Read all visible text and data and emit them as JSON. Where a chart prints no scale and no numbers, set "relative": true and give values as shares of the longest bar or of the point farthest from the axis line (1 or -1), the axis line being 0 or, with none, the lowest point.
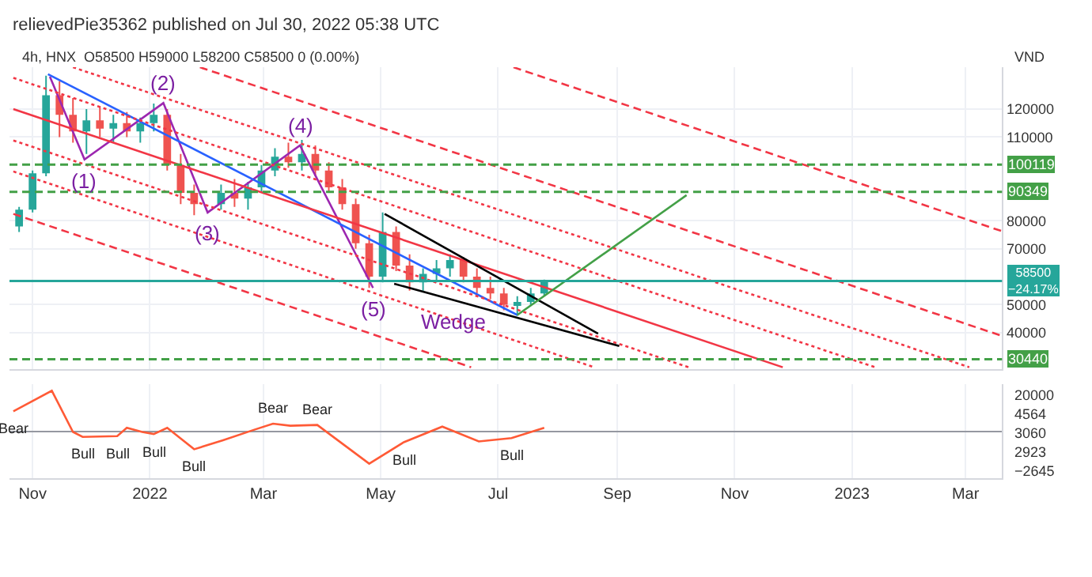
{
  "chart_data": [
    {
      "type": "candlestick",
      "title": "relievedPie35362 published on Jul 30, 2022 05:38 UTC",
      "subtitle": "4h, HNX  O58500 H59000 L58200 C58500 0 (0.00%)",
      "ylabel": "VND",
      "x": [
        "2021-10-25",
        "2021-11-01",
        "2021-11-08",
        "2021-11-15",
        "2021-11-22",
        "2021-11-29",
        "2021-12-06",
        "2021-12-13",
        "2021-12-20",
        "2021-12-27",
        "2022-01-03",
        "2022-01-10",
        "2022-01-17",
        "2022-01-24",
        "2022-02-07",
        "2022-02-14",
        "2022-02-21",
        "2022-02-28",
        "2022-03-07",
        "2022-03-14",
        "2022-03-21",
        "2022-03-28",
        "2022-04-04",
        "2022-04-11",
        "2022-04-18",
        "2022-04-25",
        "2022-05-02",
        "2022-05-09",
        "2022-05-16",
        "2022-05-23",
        "2022-05-30",
        "2022-06-06",
        "2022-06-13",
        "2022-06-20",
        "2022-06-27",
        "2022-07-04",
        "2022-07-11",
        "2022-07-18",
        "2022-07-25"
      ],
      "ohlc": [
        [
          78000,
          85000,
          76000,
          84000
        ],
        [
          84000,
          98000,
          83000,
          97000
        ],
        [
          97000,
          132000,
          96000,
          125000
        ],
        [
          125000,
          130000,
          110000,
          118000
        ],
        [
          118000,
          124000,
          108000,
          112000
        ],
        [
          112000,
          120000,
          104000,
          116000
        ],
        [
          116000,
          121000,
          110000,
          113000
        ],
        [
          113000,
          118000,
          108000,
          115000
        ],
        [
          115000,
          119000,
          110000,
          112000
        ],
        [
          112000,
          117000,
          108000,
          115000
        ],
        [
          115000,
          122000,
          112000,
          118000
        ],
        [
          118000,
          120000,
          98000,
          100000
        ],
        [
          100000,
          104000,
          86000,
          90000
        ],
        [
          90000,
          93000,
          82000,
          86000
        ],
        [
          86000,
          93000,
          84000,
          90000
        ],
        [
          90000,
          95000,
          85000,
          88000
        ],
        [
          88000,
          94000,
          84000,
          92000
        ],
        [
          92000,
          100000,
          90000,
          98000
        ],
        [
          98000,
          106000,
          96000,
          103000
        ],
        [
          103000,
          108000,
          99000,
          101000
        ],
        [
          101000,
          109000,
          98000,
          104000
        ],
        [
          104000,
          107000,
          96000,
          98000
        ],
        [
          98000,
          101000,
          90000,
          92000
        ],
        [
          92000,
          95000,
          84000,
          86000
        ],
        [
          86000,
          88000,
          70000,
          72000
        ],
        [
          72000,
          75000,
          56000,
          60000
        ],
        [
          60000,
          83000,
          58000,
          76000
        ],
        [
          76000,
          78000,
          62000,
          64000
        ],
        [
          64000,
          68000,
          55000,
          58000
        ],
        [
          58000,
          63000,
          55000,
          61000
        ],
        [
          61000,
          66000,
          58000,
          63000
        ],
        [
          63000,
          68000,
          60000,
          66000
        ],
        [
          66000,
          67000,
          58000,
          60000
        ],
        [
          60000,
          63000,
          54000,
          56000
        ],
        [
          56000,
          60000,
          52000,
          54000
        ],
        [
          54000,
          56000,
          48000,
          50000
        ],
        [
          50000,
          53000,
          46000,
          51000
        ],
        [
          51000,
          56000,
          50000,
          54000
        ],
        [
          54000,
          59000,
          53000,
          58500
        ]
      ],
      "colors": [
        "#26a69a",
        "#26a69a",
        "#26a69a",
        "#ef5350",
        "#ef5350",
        "#26a69a",
        "#ef5350",
        "#26a69a",
        "#ef5350",
        "#26a69a",
        "#26a69a",
        "#ef5350",
        "#ef5350",
        "#ef5350",
        "#26a69a",
        "#ef5350",
        "#26a69a",
        "#26a69a",
        "#26a69a",
        "#ef5350",
        "#26a69a",
        "#ef5350",
        "#ef5350",
        "#ef5350",
        "#ef5350",
        "#ef5350",
        "#26a69a",
        "#ef5350",
        "#ef5350",
        "#26a69a",
        "#26a69a",
        "#26a69a",
        "#ef5350",
        "#ef5350",
        "#ef5350",
        "#ef5350",
        "#26a69a",
        "#26a69a",
        "#26a69a"
      ],
      "series": [
        {
          "type": "line",
          "color": "#9c27b0",
          "x": [
            "2021-11-10",
            "2021-11-28",
            "2022-01-08",
            "2022-01-31",
            "2022-03-20",
            "2022-04-27"
          ],
          "values": [
            131600,
            102000,
            122200,
            83000,
            107000,
            56000
          ]
        },
        {
          "type": "line",
          "color": "#2962ff",
          "x": [
            "2021-11-09",
            "2022-07-11"
          ],
          "values": [
            132500,
            46300
          ]
        },
        {
          "type": "line",
          "color": "#f23645",
          "x": [
            "2021-10-22",
            "2022-11-26"
          ],
          "values": [
            120000,
            27600
          ]
        },
        {
          "type": "line",
          "color": "#f23645",
          "line_style": "dotted",
          "x": [
            "2021-10-22",
            "2023-01-13"
          ],
          "values": [
            131200,
            27600
          ]
        },
        {
          "type": "line",
          "color": "#f23645",
          "line_style": "dotted",
          "x": [
            "2021-11-22",
            "2023-03-03"
          ],
          "values": [
            135000,
            27600
          ]
        },
        {
          "type": "line",
          "color": "#f23645",
          "line_style": "dashed",
          "x": [
            "2022-01-27",
            "2023-03-20"
          ],
          "values": [
            135000,
            38800
          ]
        },
        {
          "type": "line",
          "color": "#f23645",
          "line_style": "dashed",
          "x": [
            "2022-07-09",
            "2023-03-20"
          ],
          "values": [
            135000,
            76300
          ]
        },
        {
          "type": "line",
          "color": "#f23645",
          "line_style": "dotted",
          "x": [
            "2021-10-22",
            "2022-10-08"
          ],
          "values": [
            108800,
            27600
          ]
        },
        {
          "type": "line",
          "color": "#f23645",
          "line_style": "dotted",
          "x": [
            "2021-10-22",
            "2022-08-20"
          ],
          "values": [
            97700,
            27600
          ]
        },
        {
          "type": "line",
          "color": "#f23645",
          "line_style": "dashed",
          "x": [
            "2021-10-22",
            "2022-06-17"
          ],
          "values": [
            82500,
            27600
          ]
        },
        {
          "type": "line",
          "color": "#000000",
          "x": [
            "2022-05-03",
            "2022-08-22"
          ],
          "values": [
            82500,
            39600
          ]
        },
        {
          "type": "line",
          "color": "#000000",
          "x": [
            "2022-05-08",
            "2022-06-08",
            "2022-09-02"
          ],
          "values": [
            57500,
            51600,
            35200
          ]
        },
        {
          "type": "line",
          "color": "#43a047",
          "x": [
            "2022-07-11",
            "2022-10-07"
          ],
          "values": [
            46300,
            89200
          ]
        }
      ],
      "ref_lines": [
        {
          "axis": "y",
          "value": 100119,
          "label": "100119",
          "color": "#43a047",
          "line_style": "dashed"
        },
        {
          "axis": "y",
          "value": 90349,
          "label": "90349",
          "color": "#43a047",
          "line_style": "dashed"
        },
        {
          "axis": "y",
          "value": 30440,
          "label": "30440",
          "color": "#43a047",
          "line_style": "dashed"
        },
        {
          "axis": "y",
          "value": 58500,
          "label": "58500\n−24.17%",
          "color": "#26a69a",
          "line_style": "solid"
        }
      ],
      "annotations": [
        {
          "text": "(1)",
          "x": "2021-11-28",
          "y": 102000
        },
        {
          "text": "(2)",
          "x": "2022-01-08",
          "y": 122200
        },
        {
          "text": "(3)",
          "x": "2022-01-31",
          "y": 83000
        },
        {
          "text": "(4)",
          "x": "2022-03-20",
          "y": 107000
        },
        {
          "text": "(5)",
          "x": "2022-04-27",
          "y": 56000
        },
        {
          "text": "Wedge",
          "x": "2022-06-08",
          "y": 51600
        }
      ],
      "xlim": [
        "2021-10-20",
        "2023-03-20"
      ],
      "xticks": [
        {
          "value": "2021-11-01",
          "label": null
        },
        {
          "value": "2022-01-01",
          "label": null
        },
        {
          "value": "2022-03-01",
          "label": null
        },
        {
          "value": "2022-05-01",
          "label": null
        },
        {
          "value": "2022-07-01",
          "label": null
        },
        {
          "value": "2022-09-01",
          "label": null
        },
        {
          "value": "2022-11-01",
          "label": null
        },
        {
          "value": "2023-01-01",
          "label": null
        },
        {
          "value": "2023-03-01",
          "label": null
        }
      ],
      "ylim": [
        27000,
        135000
      ],
      "yticks": [
        40000,
        50000,
        70000,
        80000,
        110000,
        120000
      ],
      "grid": true,
      "tick_labels": "y"
    },
    {
      "type": "line",
      "relative": true,
      "series": [
        {
          "color": "#ff5a36",
          "x": [
            "2021-10-22",
            "2021-11-11",
            "2021-11-22",
            "2021-11-27",
            "2021-12-15",
            "2021-12-20",
            "2021-12-28",
            "2022-01-03",
            "2022-01-10",
            "2022-01-24",
            "2022-02-08",
            "2022-02-24",
            "2022-03-06",
            "2022-03-15",
            "2022-03-29",
            "2022-04-25",
            "2022-05-13",
            "2022-06-02",
            "2022-06-21",
            "2022-07-08",
            "2022-07-25"
          ],
          "values": [
            0.5,
            1,
            0,
            -0.12,
            -0.1,
            0.1,
            0,
            -0.05,
            0.1,
            -0.42,
            -0.2,
            0.05,
            0.2,
            0.15,
            0.17,
            -0.77,
            -0.25,
            0.13,
            -0.23,
            -0.15,
            0.1
          ]
        }
      ],
      "annotations": [
        "20000",
        "4564",
        "3060",
        "2923",
        "−2645",
        {
          "text": "Bear",
          "x": "2021-10-22",
          "y": 0.5
        },
        {
          "text": "Bear",
          "x": "2022-03-06",
          "y": 0.2
        },
        {
          "text": "Bear",
          "x": "2022-03-29",
          "y": 0.17
        },
        {
          "text": "Bull",
          "x": "2021-11-27",
          "y": -0.12
        },
        {
          "text": "Bull",
          "x": "2021-12-15",
          "y": -0.1
        },
        {
          "text": "Bull",
          "x": "2022-01-03",
          "y": -0.05
        },
        {
          "text": "Bull",
          "x": "2022-01-24",
          "y": -0.42
        },
        {
          "text": "Bull",
          "x": "2022-05-13",
          "y": -0.25
        },
        {
          "text": "Bull",
          "x": "2022-07-08",
          "y": -0.15
        }
      ],
      "xlim": [
        "2021-10-20",
        "2023-03-20"
      ],
      "xticks": [
        {
          "value": "2021-11-01",
          "label": "Nov"
        },
        {
          "value": "2022-01-01",
          "label": "2022"
        },
        {
          "value": "2022-03-01",
          "label": "Mar"
        },
        {
          "value": "2022-05-01",
          "label": "May"
        },
        {
          "value": "2022-07-01",
          "label": "Jul"
        },
        {
          "value": "2022-09-01",
          "label": "Sep"
        },
        {
          "value": "2022-11-01",
          "label": "Nov"
        },
        {
          "value": "2023-01-01",
          "label": "2023"
        },
        {
          "value": "2023-03-01",
          "label": "Mar"
        }
      ],
      "grid": true
    }
  ]
}
